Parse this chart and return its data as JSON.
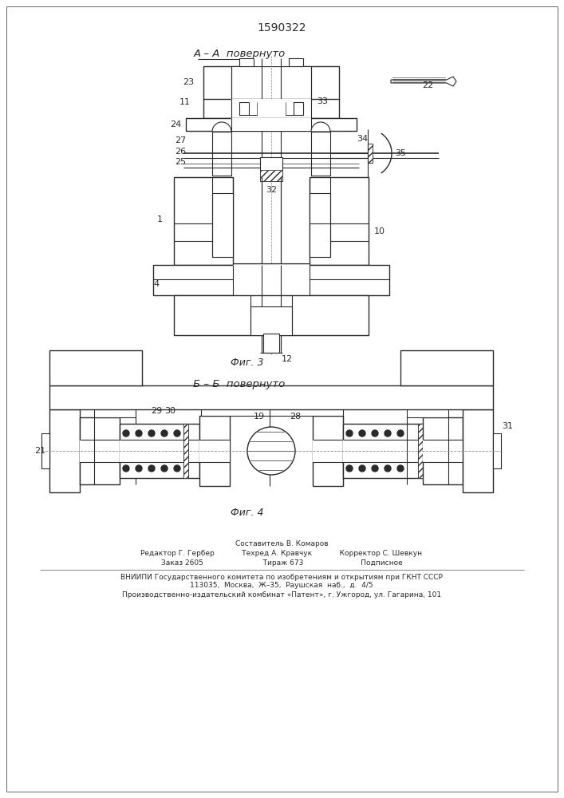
{
  "title_number": "1590322",
  "section_A_label": "А – А  повернуто",
  "section_B_label": "Б – Б  повернуто",
  "fig3_label": "Фиг. 3",
  "fig4_label": "Фиг. 4",
  "bg_color": "#ffffff",
  "line_color": "#2a2a2a",
  "footer_lines": [
    "Составитель В. Комаров",
    "Редактор Г. Гербер            Техред А. Кравчук            Корректор С. Шевкун",
    "Заказ 2605                          Тираж 673                         Подписное",
    "ВНИИПИ Государственного комитета по изобретениям и открытиям при ГКНТ СССР",
    "113035,  Москва,  Ж–35,  Раушская  наб.,  д.  4/5",
    "Производственно-издательский комбинат «Патент», г. Ужгород, ул. Гагарина, 101"
  ],
  "font_size_title": 10,
  "font_size_section": 9.5,
  "font_size_label": 8.5,
  "font_size_small": 8,
  "font_size_footer": 6.5
}
